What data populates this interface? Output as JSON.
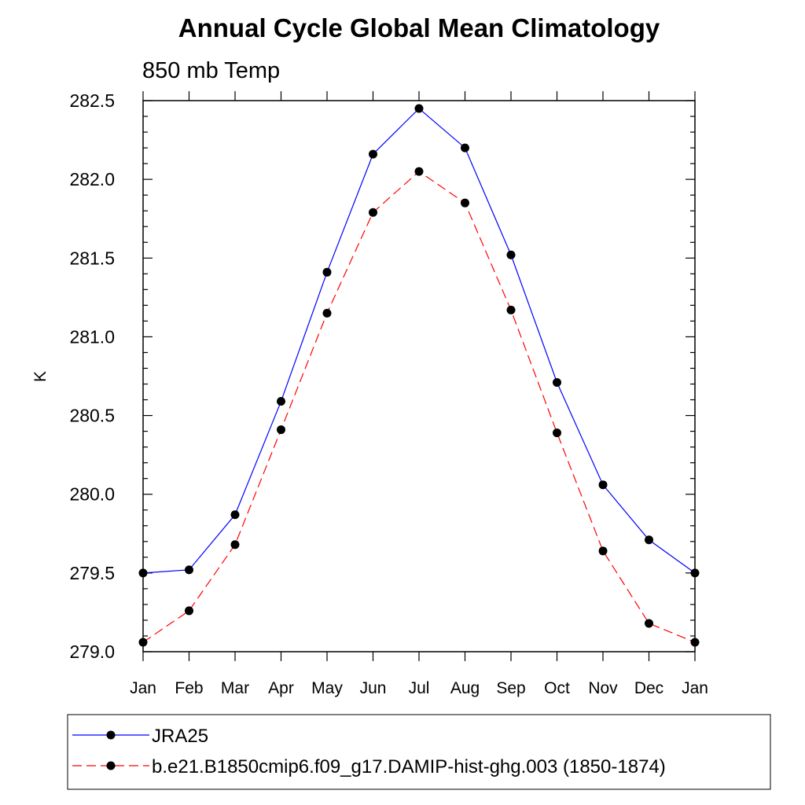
{
  "chart_data": {
    "type": "line",
    "title": "Annual Cycle Global Mean Climatology",
    "subtitle": "850 mb Temp",
    "xlabel": "",
    "ylabel": "K",
    "x": [
      "Jan",
      "Feb",
      "Mar",
      "Apr",
      "May",
      "Jun",
      "Jul",
      "Aug",
      "Sep",
      "Oct",
      "Nov",
      "Dec",
      "Jan"
    ],
    "ylim": [
      279.0,
      282.5
    ],
    "yticks": [
      "279.0",
      "279.5",
      "280.0",
      "280.5",
      "281.0",
      "281.5",
      "282.0",
      "282.5"
    ],
    "grid": false,
    "legend_position": "bottom",
    "series": [
      {
        "name": "JRA25",
        "color": "#0000ff",
        "line_style": "solid",
        "marker": "filled-circle",
        "values": [
          279.5,
          279.52,
          279.87,
          280.59,
          281.41,
          282.16,
          282.45,
          282.2,
          281.52,
          280.71,
          280.06,
          279.71,
          279.5
        ]
      },
      {
        "name": "b.e21.B1850cmip6.f09_g17.DAMIP-hist-ghg.003 (1850-1874)",
        "color": "#ff0000",
        "line_style": "dashed",
        "marker": "filled-circle",
        "values": [
          279.06,
          279.26,
          279.68,
          280.41,
          281.15,
          281.79,
          282.05,
          281.85,
          281.17,
          280.39,
          279.64,
          279.18,
          279.06
        ]
      }
    ]
  }
}
